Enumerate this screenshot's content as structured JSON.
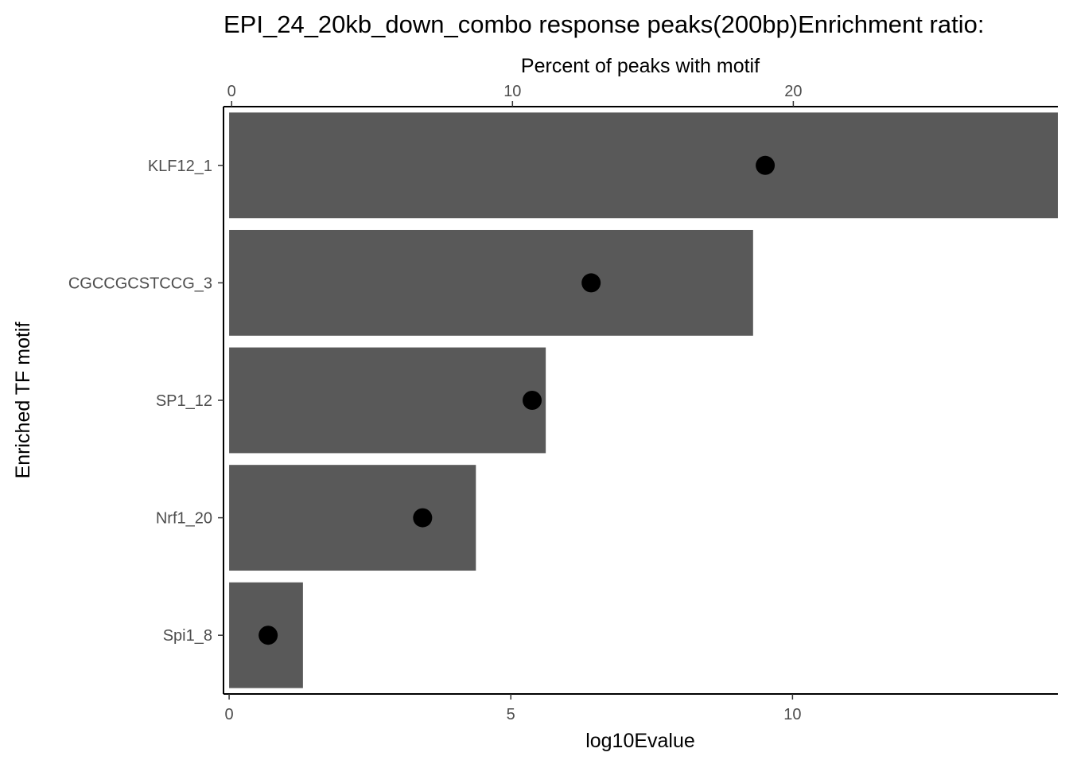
{
  "chart_data": {
    "type": "bar",
    "title": "EPI_24_20kb_down_combo response peaks(200bp)Enrichment ratio:",
    "xlabel": "log10Evalue",
    "x2label": "Percent of peaks with motif",
    "ylabel": "Enriched TF motif",
    "categories": [
      "KLF12_1",
      "CGCCGCSTCCG_3",
      "SP1_12",
      "Nrf1_20",
      "Spi1_8"
    ],
    "series": [
      {
        "metric": "log10Evalue",
        "mark": "bar",
        "color": "#595959",
        "values": [
          14.71,
          9.3,
          5.62,
          4.38,
          1.31
        ]
      },
      {
        "metric": "Percent of peaks with motif",
        "mark": "point",
        "color": "#000000",
        "values": [
          19.0,
          12.8,
          10.7,
          6.8,
          1.3
        ]
      }
    ],
    "xlim": [
      -0.1,
      14.71
    ],
    "x2lim": [
      -0.29,
      29.42
    ],
    "x_ticks": [
      "0",
      "5",
      "10"
    ],
    "x2_ticks": [
      "0",
      "10",
      "20"
    ],
    "grid": false,
    "legend": "none"
  }
}
